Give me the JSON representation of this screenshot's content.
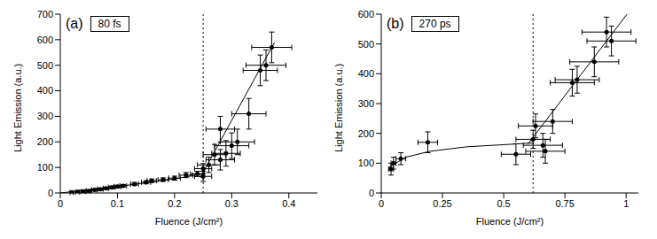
{
  "chart_data": [
    {
      "type": "scatter",
      "panel_label": "(a)",
      "annotation": "80 fs",
      "x_label": "Fluence (J/cm²)",
      "y_label": "Light Emission (a.u.)",
      "xlim": [
        0,
        0.45
      ],
      "xticks": [
        0,
        0.1,
        0.2,
        0.3,
        0.4
      ],
      "ylim": [
        0,
        700
      ],
      "yticks": [
        0,
        100,
        200,
        300,
        400,
        500,
        600,
        700
      ],
      "color": "#000000",
      "marker": "circle",
      "x": [
        0.02,
        0.03,
        0.04,
        0.05,
        0.06,
        0.07,
        0.08,
        0.09,
        0.1,
        0.11,
        0.13,
        0.15,
        0.16,
        0.18,
        0.2,
        0.22,
        0.24,
        0.25,
        0.25,
        0.26,
        0.27,
        0.28,
        0.28,
        0.29,
        0.3,
        0.31,
        0.33,
        0.35,
        0.36,
        0.37
      ],
      "values": [
        2,
        4,
        6,
        8,
        12,
        15,
        18,
        22,
        25,
        28,
        35,
        42,
        48,
        52,
        58,
        70,
        75,
        65,
        95,
        110,
        150,
        130,
        250,
        155,
        185,
        200,
        310,
        480,
        500,
        570
      ],
      "x_error": [
        0.003,
        0.003,
        0.004,
        0.004,
        0.005,
        0.005,
        0.005,
        0.006,
        0.006,
        0.006,
        0.007,
        0.008,
        0.008,
        0.009,
        0.01,
        0.012,
        0.012,
        0.015,
        0.015,
        0.02,
        0.02,
        0.025,
        0.025,
        0.025,
        0.03,
        0.03,
        0.03,
        0.03,
        0.035,
        0.035
      ],
      "y_error": [
        2,
        2,
        3,
        3,
        4,
        4,
        4,
        5,
        5,
        5,
        6,
        6,
        7,
        7,
        8,
        10,
        10,
        20,
        20,
        30,
        40,
        40,
        50,
        50,
        50,
        50,
        60,
        60,
        60,
        60
      ],
      "fit_lines": [
        {
          "x": [
            0,
            0.1,
            0.2,
            0.25
          ],
          "values": [
            0,
            25,
            55,
            75
          ],
          "line_style": "solid"
        },
        {
          "x": [
            0.245,
            0.375
          ],
          "values": [
            60,
            590
          ],
          "line_style": "solid"
        }
      ],
      "threshold": {
        "value": 0.25,
        "line_style": "dotted"
      }
    },
    {
      "type": "scatter",
      "panel_label": "(b)",
      "annotation": "270 ps",
      "x_label": "Fluence (J/cm²)",
      "y_label": "Light Emission (a.u.)",
      "xlim": [
        0,
        1.05
      ],
      "xticks": [
        0,
        0.25,
        0.5,
        0.75,
        1
      ],
      "ylim": [
        0,
        600
      ],
      "yticks": [
        0,
        100,
        200,
        300,
        400,
        500,
        600
      ],
      "color": "#000000",
      "marker": "circle",
      "x": [
        0.04,
        0.05,
        0.08,
        0.19,
        0.55,
        0.62,
        0.63,
        0.66,
        0.67,
        0.7,
        0.78,
        0.8,
        0.87,
        0.92,
        0.94
      ],
      "values": [
        80,
        100,
        115,
        170,
        130,
        180,
        225,
        160,
        140,
        240,
        370,
        380,
        440,
        540,
        510
      ],
      "x_error": [
        0.01,
        0.01,
        0.02,
        0.04,
        0.06,
        0.07,
        0.07,
        0.08,
        0.08,
        0.08,
        0.09,
        0.09,
        0.1,
        0.1,
        0.1
      ],
      "y_error": [
        20,
        20,
        20,
        35,
        35,
        30,
        40,
        40,
        40,
        40,
        45,
        45,
        50,
        50,
        50
      ],
      "fit_lines": [
        {
          "x": [
            0.03,
            0.1,
            0.2,
            0.35,
            0.5,
            0.62
          ],
          "values": [
            85,
            120,
            140,
            155,
            162,
            168
          ],
          "line_style": "solid"
        },
        {
          "x": [
            0.6,
            1.05
          ],
          "values": [
            165,
            650
          ],
          "line_style": "solid"
        }
      ],
      "threshold": {
        "value": 0.62,
        "line_style": "dotted"
      }
    }
  ]
}
